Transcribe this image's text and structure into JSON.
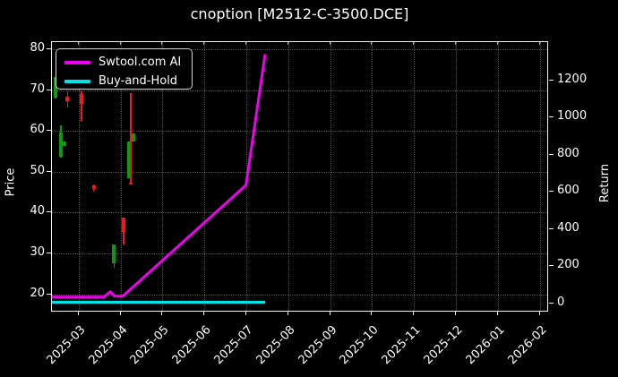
{
  "title": "cnoption [M2512-C-3500.DCE]",
  "colors": {
    "background": "#000000",
    "foreground": "#ffffff",
    "grid": "rgba(255,255,255,0.32)",
    "ai_line": "#ee00ee",
    "hold_line": "#00e1e8",
    "candle_up": "#0c9b0c",
    "candle_down": "#f21818"
  },
  "legend": {
    "items": [
      {
        "label": "Swtool.com AI",
        "color": "#ee00ee"
      },
      {
        "label": "Buy-and-Hold",
        "color": "#00e1e8"
      }
    ]
  },
  "axes": {
    "left_label": "Price",
    "right_label": "Return",
    "left_ticks": [
      20,
      30,
      40,
      50,
      60,
      70,
      80
    ],
    "right_ticks": [
      0,
      200,
      400,
      600,
      800,
      1000,
      1200
    ],
    "x_ticks": [
      "2025-03",
      "2025-04",
      "2025-05",
      "2025-06",
      "2025-07",
      "2025-08",
      "2025-09",
      "2025-10",
      "2025-11",
      "2025-12",
      "2026-01",
      "2026-02"
    ]
  },
  "chart_data": {
    "type": "candlestick+line",
    "title": "cnoption [M2512-C-3500.DCE]",
    "xlabel": "",
    "ylabel_left": "Price",
    "ylabel_right": "Return",
    "x_range": [
      "2025-02-08",
      "2026-02-22"
    ],
    "ylim_left": [
      15,
      81.5
    ],
    "ylim_right": [
      -55,
      1405
    ],
    "grid": true,
    "legend_position": "upper left",
    "candles": [
      {
        "date": "2025-02-12",
        "open": 68.1,
        "high": 73.3,
        "low": 68.0,
        "close": 73.2
      },
      {
        "date": "2025-02-16",
        "open": 53.6,
        "high": 61.3,
        "low": 53.5,
        "close": 59.6
      },
      {
        "date": "2025-02-19",
        "open": 56.3,
        "high": 57.5,
        "low": 56.2,
        "close": 57.4
      },
      {
        "date": "2025-02-21",
        "open": 68.4,
        "high": 69.8,
        "low": 65.8,
        "close": 67.2
      },
      {
        "date": "2025-03-03",
        "open": 69.0,
        "high": 69.8,
        "low": 62.4,
        "close": 66.6
      },
      {
        "date": "2025-03-12",
        "open": 46.7,
        "high": 46.9,
        "low": 45.2,
        "close": 45.8
      },
      {
        "date": "2025-03-27",
        "open": 27.5,
        "high": 32.2,
        "low": 26.4,
        "close": 32.1
      },
      {
        "date": "2025-04-03",
        "open": 38.7,
        "high": 38.8,
        "low": 32.1,
        "close": 35.2
      },
      {
        "date": "2025-04-07",
        "open": 48.4,
        "high": 57.5,
        "low": 48.3,
        "close": 57.4
      },
      {
        "date": "2025-04-08",
        "open": 47.3,
        "high": 69.2,
        "low": 46.8,
        "close": 46.9
      },
      {
        "date": "2025-04-10",
        "open": 57.4,
        "high": 59.4,
        "low": 57.3,
        "close": 59.3
      }
    ],
    "series": [
      {
        "name": "Swtool.com AI",
        "axis": "right",
        "color": "#ee00ee",
        "points": [
          [
            "2025-02-10",
            28
          ],
          [
            "2025-03-20",
            28
          ],
          [
            "2025-03-25",
            57
          ],
          [
            "2025-03-28",
            33
          ],
          [
            "2025-04-03",
            33
          ],
          [
            "2025-07-02",
            630
          ],
          [
            "2025-07-16",
            1335
          ]
        ]
      },
      {
        "name": "Buy-and-Hold",
        "axis": "right",
        "color": "#00e1e8",
        "points": [
          [
            "2025-02-10",
            0
          ],
          [
            "2025-07-16",
            0
          ]
        ]
      }
    ]
  }
}
